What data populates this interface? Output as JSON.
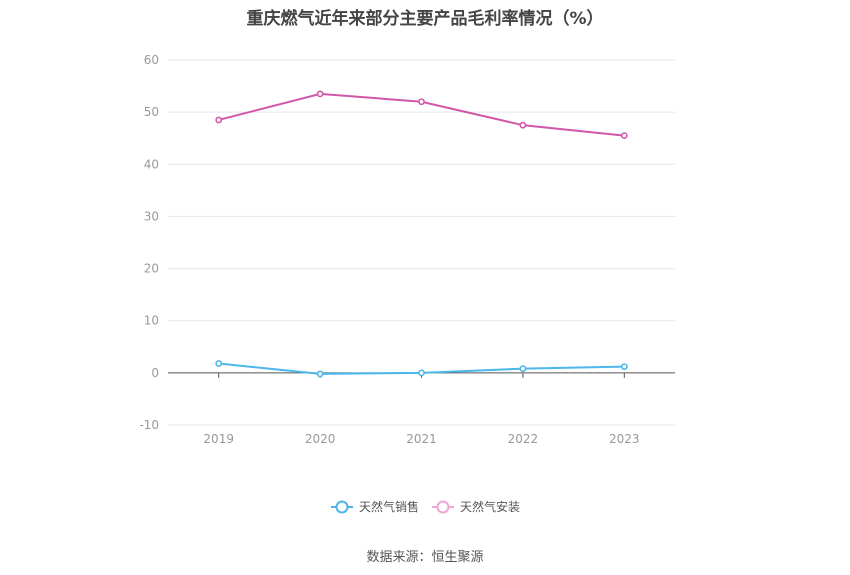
{
  "chart_data": {
    "type": "line",
    "title": "重庆燃气近年来部分主要产品毛利率情况（%）",
    "x": [
      "2019",
      "2020",
      "2021",
      "2022",
      "2023"
    ],
    "series": [
      {
        "name": "天然气销售",
        "color": "#4db6ea",
        "values": [
          1.8,
          -0.2,
          0.0,
          0.8,
          1.2
        ]
      },
      {
        "name": "天然气安装",
        "color": "#d257a9",
        "values": [
          48.5,
          53.5,
          52.0,
          47.5,
          45.5
        ]
      }
    ],
    "ylim": [
      -10,
      60
    ],
    "yticks": [
      -10,
      0,
      10,
      20,
      30,
      40,
      50,
      60
    ],
    "grid": true,
    "legend": "bottom"
  },
  "source": "数据来源：恒生聚源"
}
